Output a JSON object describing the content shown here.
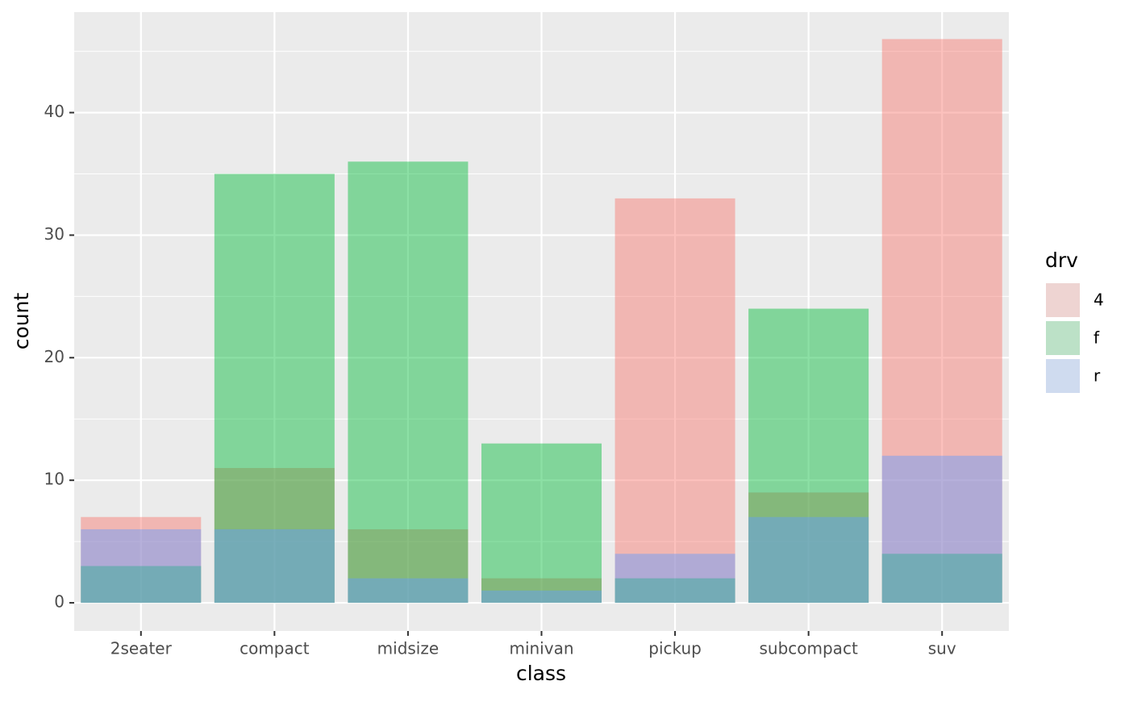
{
  "chart_data": {
    "type": "bar",
    "x_label": "class",
    "y_label": "count",
    "legend_title": "drv",
    "categories": [
      "2seater",
      "compact",
      "midsize",
      "minivan",
      "pickup",
      "subcompact",
      "suv"
    ],
    "series": [
      {
        "name": "4",
        "color": "#F8766D",
        "values": [
          7,
          11,
          6,
          2,
          33,
          9,
          46
        ]
      },
      {
        "name": "f",
        "color": "#00BA38",
        "values": [
          3,
          35,
          36,
          13,
          2,
          24,
          4
        ]
      },
      {
        "name": "r",
        "color": "#619CFF",
        "values": [
          6,
          6,
          2,
          1,
          4,
          7,
          12
        ]
      }
    ],
    "ylim": [
      -2.3,
      48.2
    ],
    "yticks": [
      0,
      10,
      20,
      30,
      40
    ],
    "grid": true,
    "position": "identity"
  }
}
